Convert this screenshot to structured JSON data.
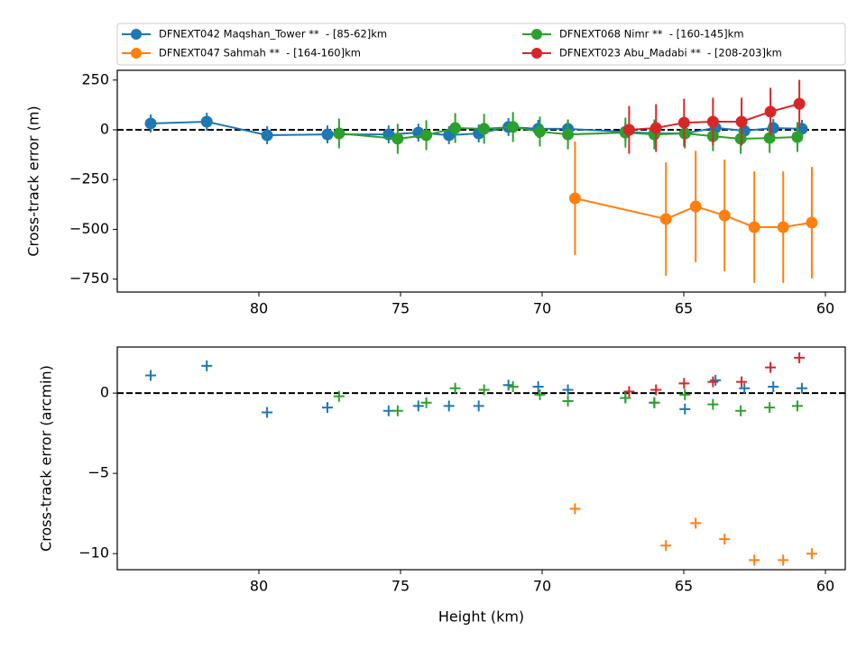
{
  "chart_data": [
    {
      "type": "line",
      "ylabel": "Cross-track error (m)",
      "xlim": [
        85.0,
        59.3
      ],
      "xticks": [
        80,
        75,
        70,
        65,
        60
      ],
      "ylim": [
        -815,
        299
      ],
      "yticks": [
        250,
        0,
        {
          "value": -250,
          "label": "−250"
        },
        {
          "value": -500,
          "label": "−500"
        },
        {
          "value": -750,
          "label": "−750"
        }
      ],
      "reference_line": 0,
      "grid": false,
      "legend": "upper center outside",
      "series": [
        {
          "name": "DFNEXT042 Maqshan_Tower **  - [85-62]km",
          "color": "#1f77b4",
          "x": [
            83.82,
            81.84,
            79.71,
            77.58,
            75.42,
            74.37,
            73.29,
            72.24,
            71.19,
            70.14,
            69.09,
            67.06,
            66.04,
            64.96,
            63.88,
            62.86,
            61.84,
            60.83
          ],
          "values": [
            32,
            41,
            -27,
            -23,
            -23,
            -14,
            -27,
            -18,
            14,
            5,
            5,
            -10,
            -18,
            -18,
            10,
            -5,
            9,
            5
          ],
          "errors": [
            45,
            45,
            45,
            45,
            45,
            45,
            45,
            45,
            45,
            45,
            45,
            45,
            45,
            45,
            45,
            45,
            45,
            45
          ]
        },
        {
          "name": "DFNEXT047 Sahmah **  - [164-160]km",
          "color": "#ff7f0e",
          "x": [
            68.84,
            65.63,
            64.58,
            63.56,
            62.51,
            61.49,
            60.48
          ],
          "values": [
            -344,
            -448,
            -385,
            -430,
            -489,
            -489,
            -466
          ],
          "errors": [
            285,
            285,
            280,
            280,
            280,
            280,
            280
          ]
        },
        {
          "name": "DFNEXT068 Nimr **  - [160-145]km",
          "color": "#2ca02c",
          "x": [
            77.17,
            75.1,
            74.09,
            73.07,
            72.05,
            71.03,
            70.08,
            69.09,
            67.06,
            66.04,
            64.96,
            63.97,
            62.99,
            61.97,
            60.99
          ],
          "values": [
            -18,
            -45,
            -27,
            9,
            5,
            14,
            -9,
            -23,
            -14,
            -23,
            -18,
            -32,
            -45,
            -41,
            -36
          ],
          "errors": [
            75,
            75,
            75,
            75,
            75,
            75,
            75,
            75,
            75,
            75,
            75,
            75,
            75,
            75,
            75
          ]
        },
        {
          "name": "DFNEXT023 Abu_Madabi **  - [208-203]km",
          "color": "#d62728",
          "x": [
            66.93,
            65.98,
            64.99,
            63.97,
            62.96,
            61.94,
            60.92
          ],
          "values": [
            0,
            9,
            36,
            41,
            41,
            91,
            131
          ],
          "errors": [
            120,
            120,
            120,
            120,
            120,
            120,
            120
          ]
        }
      ]
    },
    {
      "type": "scatter",
      "xlabel": "Height (km)",
      "ylabel": "Cross-track error (arcmin)",
      "xlim": [
        85.0,
        59.3
      ],
      "xticks": [
        80,
        75,
        70,
        65,
        60
      ],
      "ylim": [
        -11.0,
        2.87
      ],
      "yticks": [
        0,
        {
          "value": -5,
          "label": "−5"
        },
        {
          "value": -10,
          "label": "−10"
        }
      ],
      "reference_line": 0,
      "grid": false,
      "marker": "+",
      "series": [
        {
          "color": "#1f77b4",
          "x": [
            83.82,
            81.84,
            79.71,
            77.58,
            75.42,
            74.37,
            73.29,
            72.24,
            71.19,
            70.14,
            69.09,
            67.06,
            66.04,
            64.96,
            63.88,
            62.86,
            61.84,
            60.83
          ],
          "values": [
            1.1,
            1.7,
            -1.2,
            -0.9,
            -1.1,
            -0.8,
            -0.8,
            -0.8,
            0.5,
            0.4,
            0.2,
            -0.3,
            -0.6,
            -1.0,
            0.8,
            0.3,
            0.4,
            0.3
          ]
        },
        {
          "color": "#ff7f0e",
          "x": [
            68.84,
            65.63,
            64.58,
            63.56,
            62.51,
            61.49,
            60.48
          ],
          "values": [
            -7.2,
            -9.5,
            -8.1,
            -9.1,
            -10.4,
            -10.4,
            -10.0
          ]
        },
        {
          "color": "#2ca02c",
          "x": [
            77.17,
            75.1,
            74.09,
            73.07,
            72.05,
            71.03,
            70.08,
            69.09,
            67.06,
            66.04,
            64.96,
            63.97,
            62.99,
            61.97,
            60.99
          ],
          "values": [
            -0.2,
            -1.1,
            -0.6,
            0.3,
            0.2,
            0.4,
            -0.1,
            -0.5,
            -0.3,
            -0.6,
            -0.1,
            -0.7,
            -1.1,
            -0.9,
            -0.8
          ]
        },
        {
          "color": "#d62728",
          "x": [
            66.93,
            65.98,
            64.99,
            63.97,
            62.96,
            61.94,
            60.92
          ],
          "values": [
            0.1,
            0.2,
            0.6,
            0.7,
            0.7,
            1.6,
            2.2
          ]
        }
      ]
    }
  ]
}
